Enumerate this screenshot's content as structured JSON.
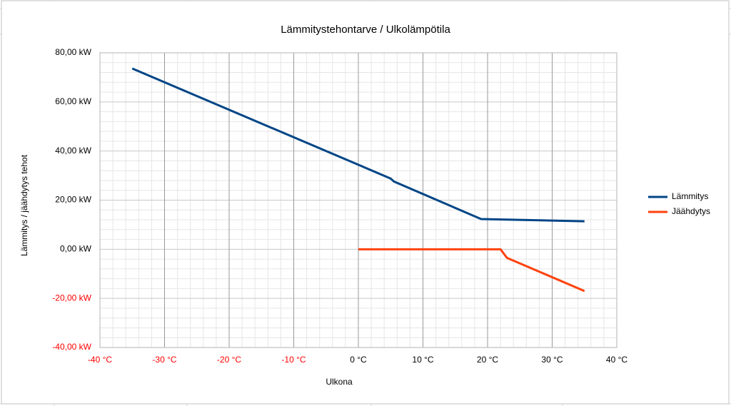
{
  "chart_data": {
    "type": "line",
    "title": "Lämmitystehontarve / Ulkolämpötila",
    "x_label": "Ulkona",
    "y_label": "Lämmitys / jäähdytys tehot",
    "series": [
      {
        "name": "Lämmitys",
        "color": "#004586",
        "x": [
          -35,
          5,
          5.5,
          19,
          35
        ],
        "values": [
          73.6,
          28.8,
          27.6,
          12.3,
          11.4
        ]
      },
      {
        "name": "Jäähdytys",
        "color": "#ff420e",
        "x": [
          0,
          22,
          23,
          35
        ],
        "values": [
          0,
          0,
          -3.5,
          -17
        ]
      }
    ],
    "xlim": [
      -40,
      40
    ],
    "xticks": [
      {
        "value": -40,
        "label": "-40 °C"
      },
      {
        "value": -30,
        "label": "-30 °C"
      },
      {
        "value": -20,
        "label": "-20 °C"
      },
      {
        "value": -10,
        "label": "-10 °C"
      },
      {
        "value": 0,
        "label": "0 °C"
      },
      {
        "value": 10,
        "label": "10 °C"
      },
      {
        "value": 20,
        "label": "20 °C"
      },
      {
        "value": 30,
        "label": "30 °C"
      },
      {
        "value": 40,
        "label": "40 °C"
      }
    ],
    "ylim": [
      -40,
      80
    ],
    "yticks": [
      {
        "value": -40,
        "label": "-40,00 kW"
      },
      {
        "value": -20,
        "label": "-20,00 kW"
      },
      {
        "value": 0,
        "label": "0,00 kW"
      },
      {
        "value": 20,
        "label": "20,00 kW"
      },
      {
        "value": 40,
        "label": "40,00 kW"
      },
      {
        "value": 60,
        "label": "60,00 kW"
      },
      {
        "value": 80,
        "label": "80,00 kW"
      }
    ],
    "grid": true,
    "legend": "right",
    "negative_label_color": "#ff0000"
  }
}
